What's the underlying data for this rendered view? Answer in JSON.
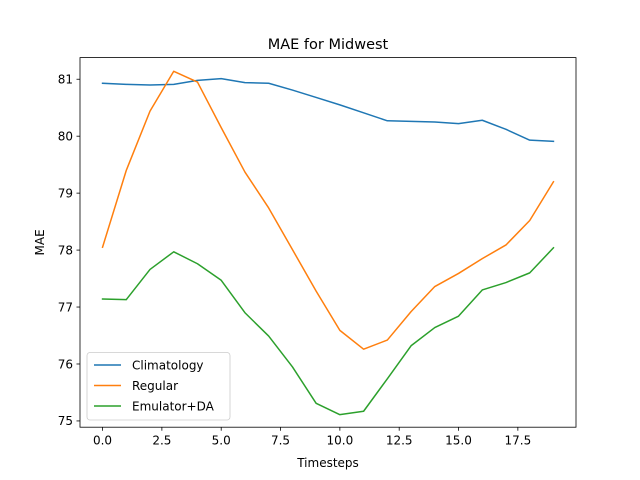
{
  "chart_data": {
    "type": "line",
    "title": "MAE for Midwest",
    "xlabel": "Timesteps",
    "ylabel": "MAE",
    "xlim": [
      -0.95,
      19.95
    ],
    "ylim": [
      74.89,
      81.38
    ],
    "xticks": [
      0.0,
      2.5,
      5.0,
      7.5,
      10.0,
      12.5,
      15.0,
      17.5
    ],
    "xtick_labels": [
      "0.0",
      "2.5",
      "5.0",
      "7.5",
      "10.0",
      "12.5",
      "15.0",
      "17.5"
    ],
    "yticks": [
      75,
      76,
      77,
      78,
      79,
      80,
      81
    ],
    "ytick_labels": [
      "75",
      "76",
      "77",
      "78",
      "79",
      "80",
      "81"
    ],
    "grid": false,
    "legend_position": "lower-left",
    "x": [
      0,
      1,
      2,
      3,
      4,
      5,
      6,
      7,
      8,
      9,
      10,
      11,
      12,
      13,
      14,
      15,
      16,
      17,
      18,
      19
    ],
    "series": [
      {
        "name": "Climatology",
        "color": "#1f77b4",
        "values": [
          80.93,
          80.91,
          80.9,
          80.91,
          80.98,
          81.01,
          80.94,
          80.93,
          80.81,
          80.68,
          80.55,
          80.41,
          80.27,
          80.26,
          80.25,
          80.22,
          80.28,
          80.12,
          79.93,
          79.91
        ]
      },
      {
        "name": "Regular",
        "color": "#ff7f0e",
        "values": [
          78.05,
          79.4,
          80.44,
          81.14,
          80.95,
          80.15,
          79.37,
          78.74,
          78.01,
          77.28,
          76.59,
          76.26,
          76.42,
          76.92,
          77.36,
          77.59,
          77.85,
          78.09,
          78.52,
          79.2
        ]
      },
      {
        "name": "Emulator+DA",
        "color": "#2ca02c",
        "values": [
          77.14,
          77.13,
          77.66,
          77.97,
          77.76,
          77.47,
          76.9,
          76.49,
          75.95,
          75.31,
          75.11,
          75.17,
          75.74,
          76.32,
          76.64,
          76.84,
          77.3,
          77.43,
          77.6,
          78.04
        ]
      }
    ]
  }
}
